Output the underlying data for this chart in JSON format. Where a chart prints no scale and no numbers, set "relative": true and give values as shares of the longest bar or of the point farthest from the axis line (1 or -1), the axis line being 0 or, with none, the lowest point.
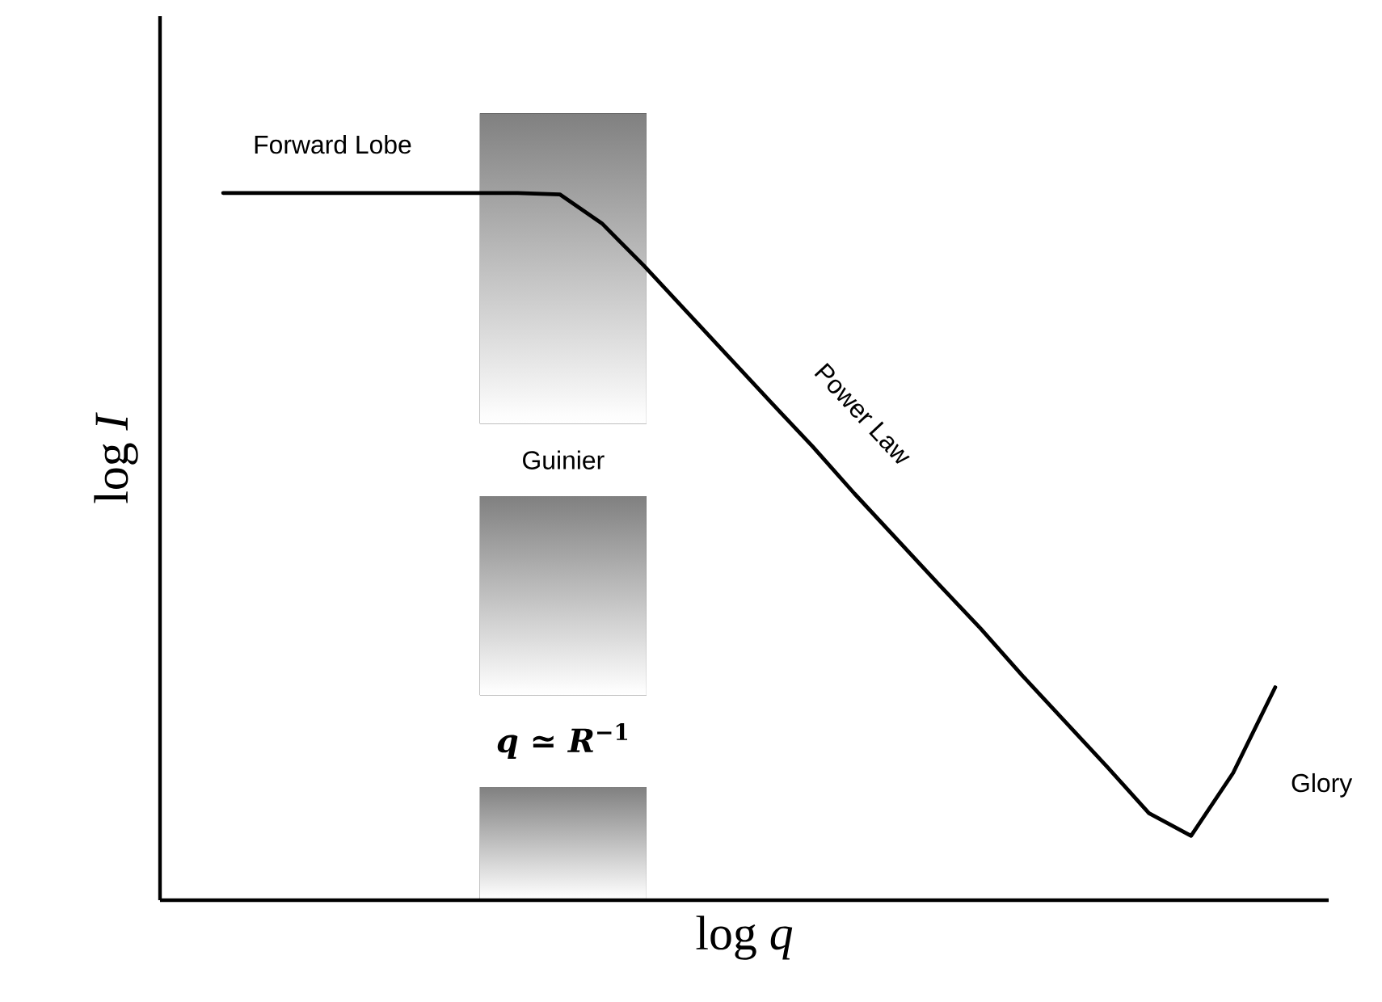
{
  "chart_data": {
    "type": "line",
    "relative": true,
    "xlabel": "log *q*",
    "ylabel": "log *I*",
    "categories": [
      null,
      null,
      null,
      null,
      null,
      null,
      null,
      null,
      null,
      null,
      null,
      null,
      null,
      null,
      null,
      null,
      null,
      null,
      null,
      null,
      null,
      null,
      null,
      null,
      null,
      null
    ],
    "series": [
      {
        "color": "#000000",
        "values": [
          1.0,
          1.0,
          1.0,
          1.0,
          1.0,
          1.0,
          1.0,
          1.0,
          0.998,
          0.957,
          0.897,
          0.833,
          0.769,
          0.705,
          0.642,
          0.575,
          0.511,
          0.447,
          0.384,
          0.317,
          0.253,
          0.189,
          0.123,
          0.091,
          0.18,
          0.301
        ]
      }
    ],
    "annotations": [
      "Guinier",
      "Forward Lobe",
      "Power Law",
      "Glory",
      "*q* ≃ *R*$^{−1}$"
    ]
  }
}
